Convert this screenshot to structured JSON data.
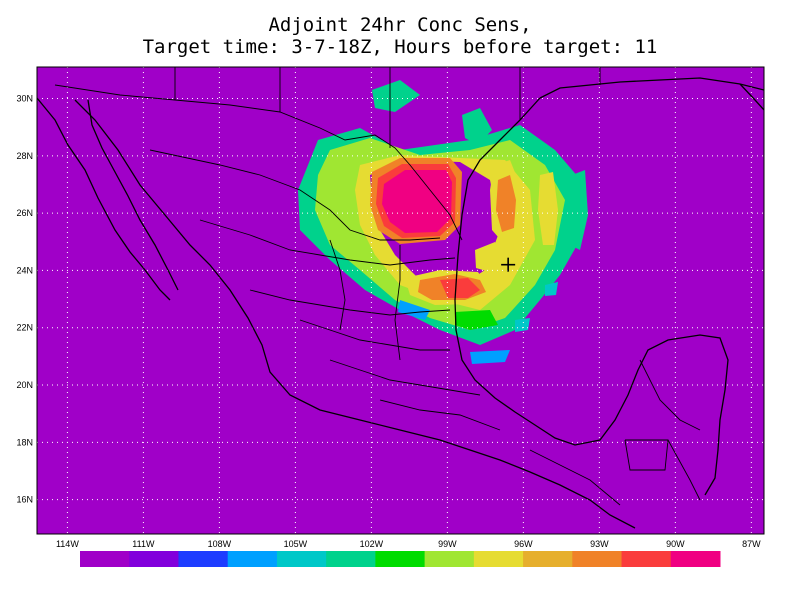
{
  "title": {
    "line1": "Adjoint 24hr Conc Sens,",
    "line2": "Target time: 3-7-18Z, Hours before target: 11"
  },
  "axes": {
    "lat_labels": [
      "30N",
      "28N",
      "26N",
      "24N",
      "22N",
      "20N",
      "18N",
      "16N"
    ],
    "lon_labels": [
      "114W",
      "111W",
      "108W",
      "105W",
      "102W",
      "99W",
      "96W",
      "93W",
      "90W",
      "87W"
    ],
    "lat_range": [
      14.8,
      31.1
    ],
    "lon_range": [
      -115.2,
      -86.5
    ],
    "grid": "dotted"
  },
  "colorbar": {
    "colors": [
      "#a000c8",
      "#8200dc",
      "#1e3cff",
      "#00a0ff",
      "#00c8c8",
      "#00d28c",
      "#00dc00",
      "#a0e632",
      "#e6dc32",
      "#e6af2d",
      "#f08228",
      "#fa3c3c",
      "#f00082"
    ],
    "labels": []
  },
  "marker": {
    "name": "target-cross",
    "lon": -96.6,
    "lat": 24.2
  },
  "background_color": "#a000c8",
  "coastline_color": "#000000"
}
